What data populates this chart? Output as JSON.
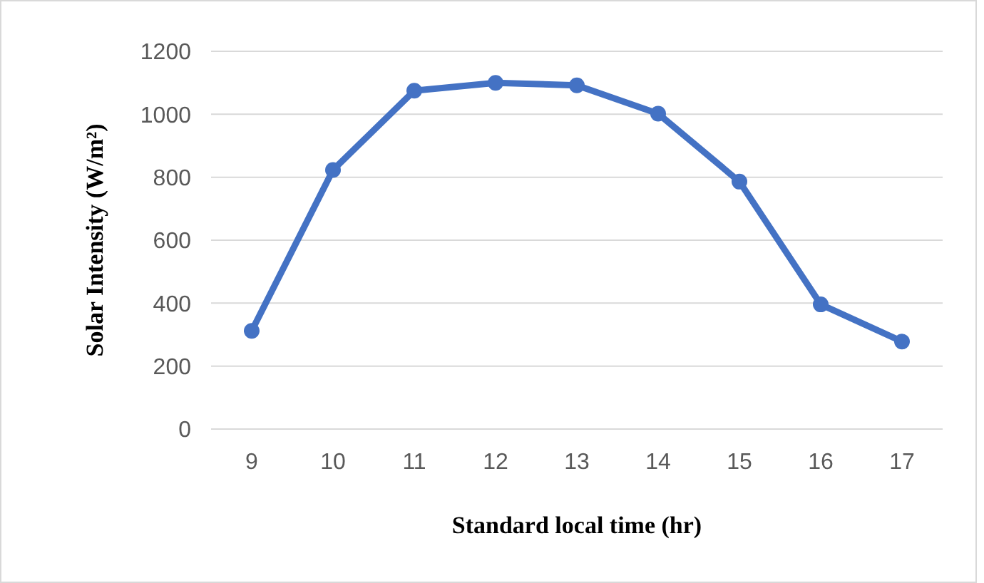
{
  "chart_data": {
    "type": "line",
    "xlabel": "Standard local time (hr)",
    "ylabel": "Solar Intensity (W/m²)",
    "categories": [
      "9",
      "10",
      "11",
      "12",
      "13",
      "14",
      "15",
      "16",
      "17"
    ],
    "series": [
      {
        "color": "#4472c4",
        "values": [
          312,
          823,
          1075,
          1100,
          1092,
          1002,
          786,
          396,
          278
        ]
      }
    ],
    "ylim": [
      0,
      1200
    ],
    "yticks": [
      0,
      200,
      400,
      600,
      800,
      1000,
      1200
    ],
    "grid": "y",
    "marker": "circle",
    "line_style": "solid"
  }
}
